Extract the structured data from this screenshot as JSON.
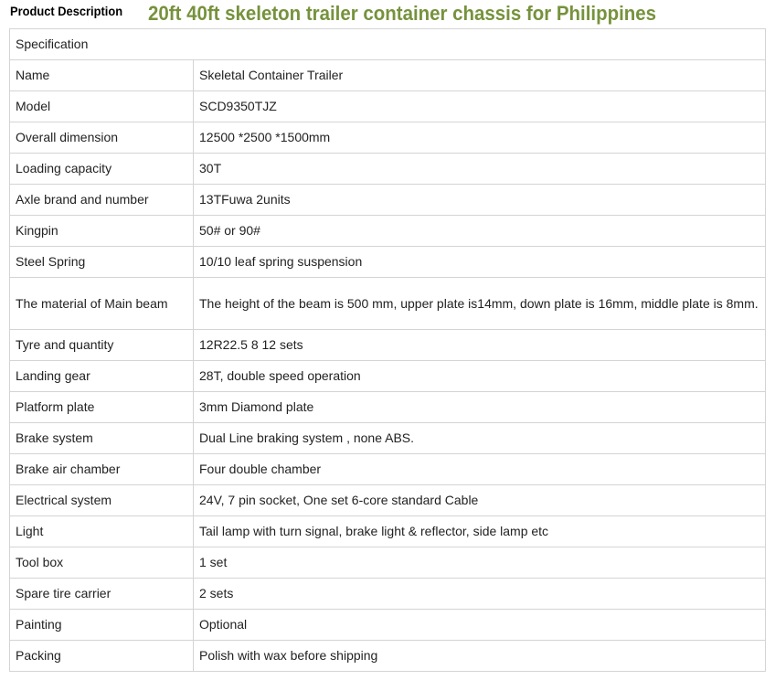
{
  "header": {
    "label": "Product Description",
    "title": "20ft 40ft skeleton trailer container chassis for Philippines",
    "title_color": "#76923c"
  },
  "table": {
    "caption": "Specification",
    "rows": [
      {
        "key": "Name",
        "value": "Skeletal Container Trailer"
      },
      {
        "key": "Model",
        "value": "SCD9350TJZ"
      },
      {
        "key": "Overall dimension",
        "value": "12500 *2500 *1500mm"
      },
      {
        "key": "Loading capacity",
        "value": "30T"
      },
      {
        "key": "Axle brand and number",
        "value": "13TFuwa 2units"
      },
      {
        "key": "Kingpin",
        "value": "50# or 90#"
      },
      {
        "key": "Steel Spring",
        "value": "10/10 leaf spring suspension"
      },
      {
        "key": "The material of Main beam",
        "value": "The height of the beam is 500 mm, upper plate is14mm, down plate is 16mm, middle plate is 8mm."
      },
      {
        "key": "Tyre and quantity",
        "value": "12R22.5 8 12 sets"
      },
      {
        "key": "Landing gear",
        "value": "28T, double speed operation"
      },
      {
        "key": "Platform plate",
        "value": "3mm Diamond plate"
      },
      {
        "key": "Brake system",
        "value": "Dual Line braking system , none ABS."
      },
      {
        "key": "Brake air chamber",
        "value": "Four double chamber"
      },
      {
        "key": "Electrical system",
        "value": "24V, 7 pin socket, One set 6-core standard Cable"
      },
      {
        "key": "Light",
        "value": "Tail lamp with turn signal, brake light & reflector, side lamp etc"
      },
      {
        "key": "Tool box",
        "value": "1 set"
      },
      {
        "key": "Spare tire carrier",
        "value": "2 sets"
      },
      {
        "key": "Painting",
        "value": "Optional"
      },
      {
        "key": "Packing",
        "value": "Polish with wax before shipping"
      }
    ]
  }
}
